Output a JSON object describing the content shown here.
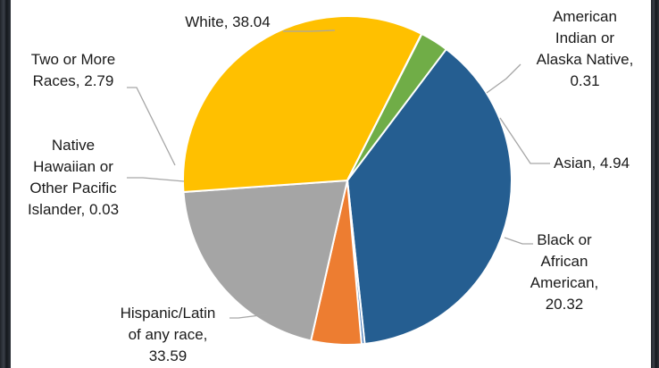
{
  "chart_data": {
    "type": "pie",
    "slices": [
      {
        "label": "White",
        "value": 38.04,
        "color": "#255E91",
        "label_lines": [
          "White, 38.04"
        ]
      },
      {
        "label": "American Indian or Alaska Native",
        "value": 0.31,
        "color": "#4F81BD",
        "label_lines": [
          "American",
          "Indian or",
          "Alaska Native,",
          "0.31"
        ]
      },
      {
        "label": "Asian",
        "value": 4.94,
        "color": "#ED7D31",
        "label_lines": [
          "Asian, 4.94"
        ]
      },
      {
        "label": "Black or African American",
        "value": 20.32,
        "color": "#A5A5A5",
        "label_lines": [
          "Black or",
          "African",
          "American,",
          "20.32"
        ]
      },
      {
        "label": "Hispanic/Latin of any race",
        "value": 33.59,
        "color": "#FFC000",
        "label_lines": [
          "Hispanic/Latin",
          "of any race,",
          "33.59"
        ]
      },
      {
        "label": "Native Hawaiian or Other Pacific Islander",
        "value": 0.03,
        "color": "#5B9BD5",
        "label_lines": [
          "Native",
          "Hawaiian or",
          "Other Pacific",
          "Islander, 0.03"
        ]
      },
      {
        "label": "Two or More Races",
        "value": 2.79,
        "color": "#70AD47",
        "label_lines": [
          "Two or More",
          "Races, 2.79"
        ]
      }
    ]
  }
}
